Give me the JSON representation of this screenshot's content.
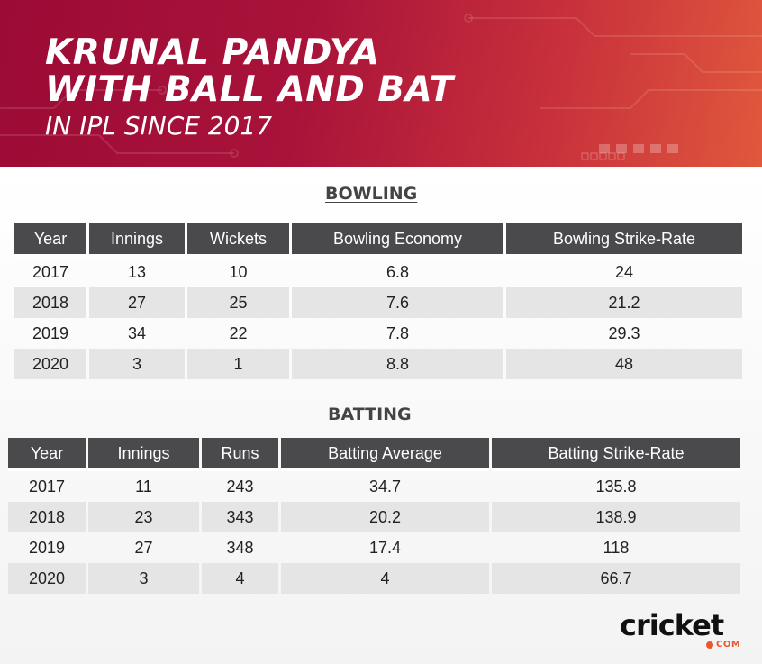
{
  "header": {
    "title_line1": "KRUNAL PANDYA",
    "title_line2": "WITH BALL AND BAT",
    "subtitle": "IN IPL SINCE 2017"
  },
  "bowling": {
    "heading": "BOWLING",
    "columns": [
      "Year",
      "Innings",
      "Wickets",
      "Bowling Economy",
      "Bowling Strike-Rate"
    ],
    "rows": [
      [
        "2017",
        "13",
        "10",
        "6.8",
        "24"
      ],
      [
        "2018",
        "27",
        "25",
        "7.6",
        "21.2"
      ],
      [
        "2019",
        "34",
        "22",
        "7.8",
        "29.3"
      ],
      [
        "2020",
        "3",
        "1",
        "8.8",
        "48"
      ]
    ]
  },
  "batting": {
    "heading": "BATTING",
    "columns": [
      "Year",
      "Innings",
      "Runs",
      "Batting Average",
      "Batting Strike-Rate"
    ],
    "rows": [
      [
        "2017",
        "11",
        "243",
        "34.7",
        "135.8"
      ],
      [
        "2018",
        "23",
        "343",
        "20.2",
        "138.9"
      ],
      [
        "2019",
        "27",
        "348",
        "17.4",
        "118"
      ],
      [
        "2020",
        "3",
        "4",
        "4",
        "66.7"
      ]
    ]
  },
  "logo": {
    "main": "cricket",
    "sub": "COM"
  },
  "colors": {
    "banner_start": "#9c0b35",
    "banner_end": "#e0583d",
    "header_cell": "#4a4a4c",
    "alt_row": "#e5e5e5",
    "logo_accent": "#e8572e"
  }
}
